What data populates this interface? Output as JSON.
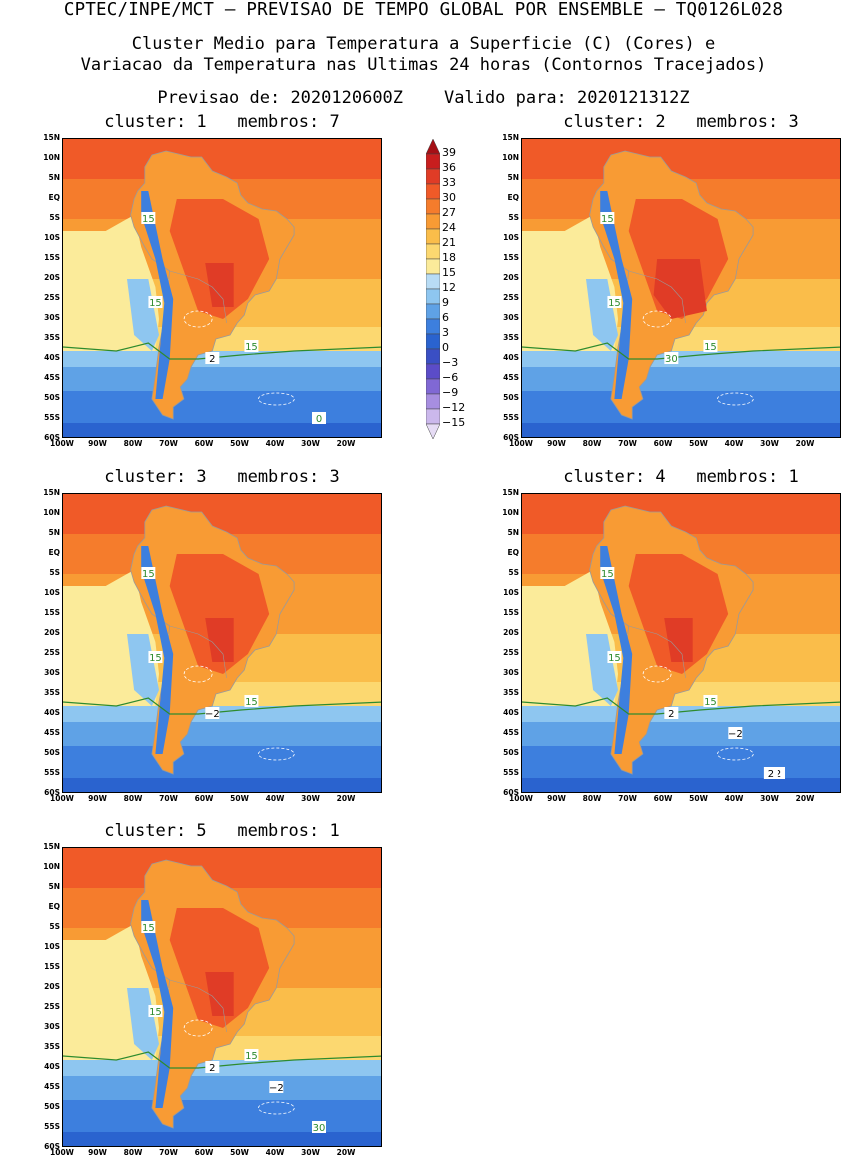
{
  "header": {
    "line1": "CPTEC/INPE/MCT – PREVISAO DE TEMPO GLOBAL POR ENSEMBLE – TQ0126L028",
    "line2": "Cluster Medio para Temperatura a Superficie (C) (Cores) e",
    "line3": "Variacao da Temperatura nas Ultimas 24 horas (Contornos Tracejados)",
    "line4": "Previsao de: 2020120600Z    Valido para: 2020121312Z"
  },
  "lat_labels": [
    "15N",
    "10N",
    "5N",
    "EQ",
    "5S",
    "10S",
    "15S",
    "20S",
    "25S",
    "30S",
    "35S",
    "40S",
    "45S",
    "50S",
    "55S",
    "60S"
  ],
  "lon_labels": [
    "100W",
    "90W",
    "80W",
    "70W",
    "60W",
    "50W",
    "40W",
    "30W",
    "20W"
  ],
  "colorbar": {
    "levels": [
      "39",
      "36",
      "33",
      "30",
      "27",
      "24",
      "21",
      "18",
      "15",
      "12",
      "9",
      "6",
      "3",
      "0",
      "−3",
      "−6",
      "−9",
      "−12",
      "−15"
    ],
    "colors": [
      "#a50f15",
      "#c81e1e",
      "#e03c26",
      "#f05a28",
      "#f57c2c",
      "#f89b34",
      "#fabd4a",
      "#fcd870",
      "#fbeb9a",
      "#b8dcf5",
      "#8ec6f0",
      "#5fa2e6",
      "#3d7fde",
      "#2a63cf",
      "#3a4fc4",
      "#5b4cc8",
      "#8068d4",
      "#a78ee0",
      "#cbb8ec",
      "#e6dcf5"
    ]
  },
  "panels": [
    {
      "title": "cluster: 1   membros: 7",
      "labels": [
        "15",
        "15",
        "15",
        "2",
        "0"
      ]
    },
    {
      "title": "cluster: 2   membros: 3",
      "labels": [
        "15",
        "15",
        "15",
        "30"
      ]
    },
    {
      "title": "cluster: 3   membros: 3",
      "labels": [
        "15",
        "15",
        "15",
        "−2"
      ]
    },
    {
      "title": "cluster: 4   membros: 1",
      "labels": [
        "15",
        "15",
        "15",
        "2",
        "2",
        "−2",
        "2"
      ]
    },
    {
      "title": "cluster: 5   membros: 1",
      "labels": [
        "15",
        "15",
        "15",
        "2",
        "30",
        "−2"
      ]
    }
  ]
}
